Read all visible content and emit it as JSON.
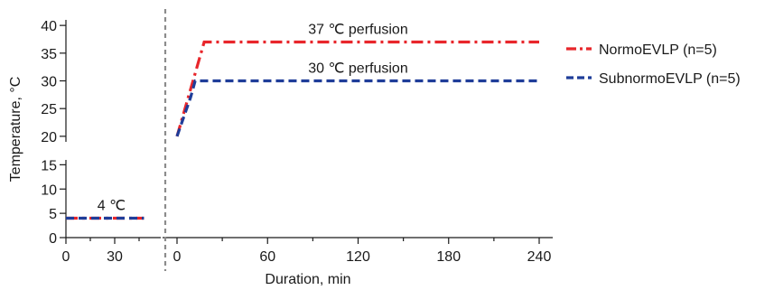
{
  "chart_data": {
    "type": "line",
    "title": "",
    "xlabel": "Duration, min",
    "ylabel": "Temperature, °C",
    "x_axis_segments": [
      {
        "range": [
          0,
          48
        ],
        "ticks": [
          0,
          30
        ],
        "tick_labels": [
          "0",
          "30"
        ]
      },
      {
        "range": [
          -8,
          242
        ],
        "ticks": [
          0,
          60,
          120,
          180,
          240
        ],
        "tick_labels": [
          "0",
          "60",
          "120",
          "180",
          "240"
        ]
      }
    ],
    "y_axis_segments": [
      {
        "range": [
          0,
          16
        ],
        "ticks": [
          0,
          5,
          10,
          15
        ],
        "tick_labels": [
          "0",
          "5",
          "10",
          "15"
        ]
      },
      {
        "range": [
          19,
          41
        ],
        "ticks": [
          20,
          25,
          30,
          35,
          40
        ],
        "tick_labels": [
          "20",
          "25",
          "30",
          "35",
          "40"
        ]
      }
    ],
    "series": [
      {
        "name": "NormoEVLP (n=5)",
        "color": "#e8262b",
        "dash": "dash-dot",
        "cold_storage": {
          "x": [
            0,
            48
          ],
          "y": [
            4,
            4
          ]
        },
        "perfusion": {
          "x": [
            0,
            18,
            240
          ],
          "y": [
            20,
            37,
            37
          ]
        }
      },
      {
        "name": "SubnormoEVLP (n=5)",
        "color": "#1f3d99",
        "dash": "dashed",
        "cold_storage": {
          "x": [
            0,
            48
          ],
          "y": [
            4,
            4
          ]
        },
        "perfusion": {
          "x": [
            0,
            9,
            12,
            240
          ],
          "y": [
            20,
            27,
            30,
            30
          ]
        }
      }
    ],
    "annotations": [
      {
        "text": "4 ℃",
        "x": 28,
        "y": 4,
        "segment": 0
      },
      {
        "text": "30 ℃ perfusion",
        "x": 120,
        "y": 30,
        "segment": 1
      },
      {
        "text": "37 ℃ perfusion",
        "x": 120,
        "y": 37,
        "segment": 1
      }
    ],
    "divider": {
      "color": "#8c8c8c",
      "style": "dashed"
    },
    "legend_position": "right",
    "grid": false
  }
}
